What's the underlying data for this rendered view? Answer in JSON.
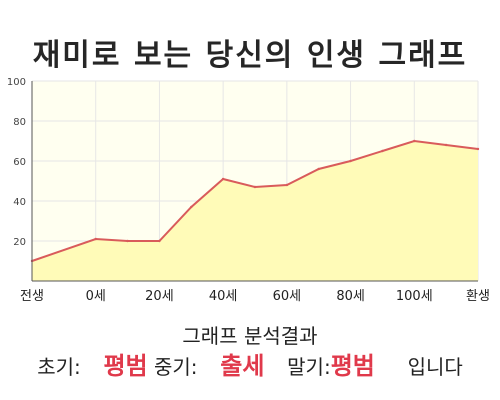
{
  "title": "재미로 보는 당신의 인생 그래프",
  "chart_data": {
    "type": "area",
    "title": "재미로 보는 당신의 인생 그래프",
    "xlabel": "",
    "ylabel": "",
    "ylim": [
      0,
      100
    ],
    "y_ticks": [
      20,
      40,
      60,
      80,
      100
    ],
    "categories": [
      "전생",
      "0세",
      "20세",
      "40세",
      "60세",
      "80세",
      "100세",
      "환생"
    ],
    "x": [
      -20,
      0,
      10,
      20,
      30,
      40,
      50,
      60,
      70,
      80,
      90,
      100,
      110,
      120
    ],
    "values": [
      10,
      21,
      20,
      20,
      37,
      51,
      47,
      48,
      56,
      60,
      65,
      70,
      68,
      66
    ],
    "grid": true,
    "colors": {
      "fill": "#fffbb8",
      "line": "#d95b5b",
      "plot_bg": "#fffff0",
      "grid": "#e6e6e6"
    }
  },
  "analysis": {
    "heading": "그래프 분석결과",
    "early_label": "초기:",
    "early_value": "평범",
    "mid_label": "중기:",
    "mid_value": "출세",
    "late_label": "말기:",
    "late_value": "평범",
    "ending": "입니다"
  }
}
